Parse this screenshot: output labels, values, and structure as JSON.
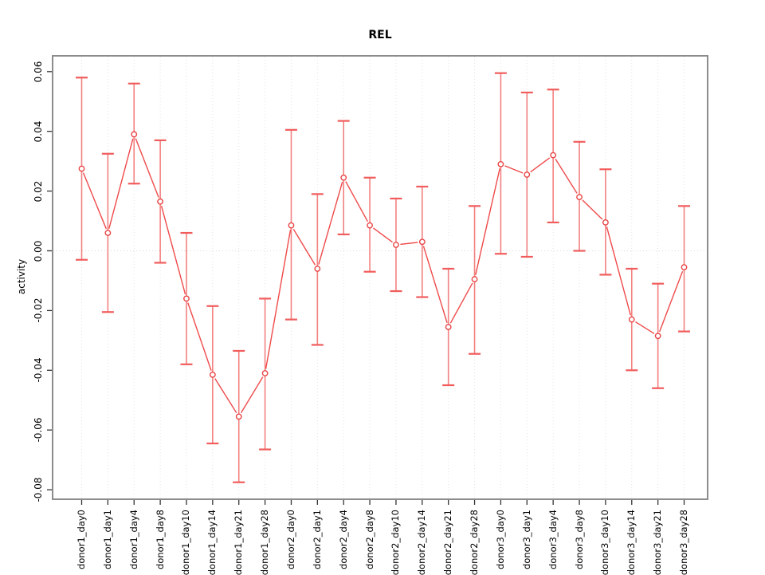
{
  "window": {
    "background": "#ffffff"
  },
  "chart_data": {
    "type": "line",
    "title": "REL",
    "xlabel": "",
    "ylabel": "activity",
    "ylim": [
      -0.08,
      0.06
    ],
    "y_ticks": [
      0.06,
      0.04,
      0.02,
      0.0,
      -0.02,
      -0.04,
      -0.06,
      -0.08
    ],
    "y_tick_labels": [
      "0.06",
      "0.04",
      "0.02",
      "0.00",
      "-0.02",
      "-0.04",
      "-0.06",
      "-0.08"
    ],
    "grid": {
      "vertical_dotted_per_category": true,
      "horizontal_zero_dotted": true
    },
    "legend": "none",
    "marker": "open-circle",
    "error_bars": true,
    "categories": [
      "donor1_day0",
      "donor1_day1",
      "donor1_day4",
      "donor1_day8",
      "donor1_day10",
      "donor1_day14",
      "donor1_day21",
      "donor1_day28",
      "donor2_day0",
      "donor2_day1",
      "donor2_day4",
      "donor2_day8",
      "donor2_day10",
      "donor2_day14",
      "donor2_day21",
      "donor2_day28",
      "donor3_day0",
      "donor3_day1",
      "donor3_day4",
      "donor3_day8",
      "donor3_day10",
      "donor3_day14",
      "donor3_day21",
      "donor3_day28"
    ],
    "series": [
      {
        "name": "activity",
        "values": [
          0.0275,
          0.006,
          0.039,
          0.0165,
          -0.016,
          -0.0415,
          -0.0555,
          -0.041,
          0.0085,
          -0.006,
          0.0245,
          0.0085,
          0.002,
          0.003,
          -0.0255,
          -0.0095,
          0.029,
          0.0255,
          0.032,
          0.018,
          0.0095,
          -0.023,
          -0.0285,
          -0.0055
        ],
        "err_low": [
          -0.003,
          -0.0205,
          0.0225,
          -0.004,
          -0.038,
          -0.0645,
          -0.0775,
          -0.0665,
          -0.023,
          -0.0315,
          0.0055,
          -0.007,
          -0.0135,
          -0.0155,
          -0.045,
          -0.0345,
          -0.001,
          -0.002,
          0.0095,
          0.0,
          -0.008,
          -0.04,
          -0.046,
          -0.027
        ],
        "err_high": [
          0.058,
          0.0325,
          0.056,
          0.037,
          0.006,
          -0.0185,
          -0.0335,
          -0.016,
          0.0405,
          0.019,
          0.0435,
          0.0245,
          0.0175,
          0.0215,
          -0.006,
          0.015,
          0.0595,
          0.053,
          0.054,
          0.0365,
          0.0273,
          -0.006,
          -0.011,
          0.015
        ]
      }
    ],
    "colors": {
      "series_line": "#ef4a4a",
      "error_bar": "#f38080",
      "error_cap": "#f15c5c",
      "marker_stroke": "#e94444",
      "grid": "#e3e3e3",
      "zero_line": "#d9d9d9",
      "plot_border": "#8c8c8c",
      "tick": "#333333",
      "text": "#000000"
    }
  }
}
